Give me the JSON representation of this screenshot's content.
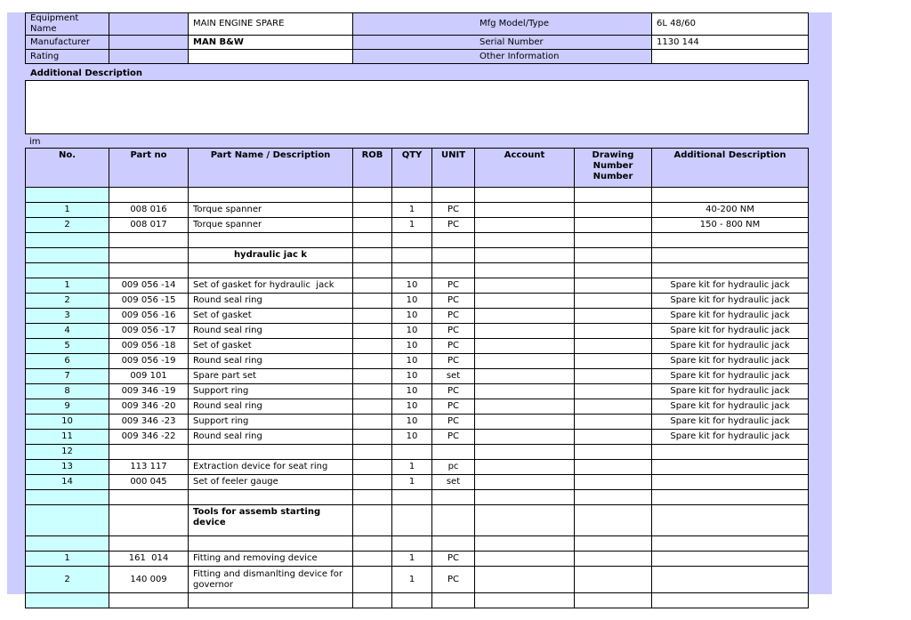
{
  "header": {
    "left": [
      {
        "label": "Equipment Name",
        "value": "MAIN ENGINE SPARE"
      },
      {
        "label": "Manufacturer",
        "value": "MAN B&W"
      },
      {
        "label": "Rating"
      }
    ],
    "right": [
      {
        "label": "Mfg Model/Type",
        "value": "6L 48/60"
      },
      {
        "label": "Serial Number",
        "value": "1130 144"
      },
      {
        "label": "Other Information"
      }
    ]
  },
  "additional_description_label": "Additional Description",
  "im_label": "im",
  "table": {
    "columns": [
      "No.",
      "Part no",
      "Part Name / Description",
      "ROB",
      "QTY",
      "UNIT",
      "Account",
      "Drawing Number Number",
      "Additional Description"
    ],
    "groups": [
      {
        "items": [
          {
            "no": "1",
            "part_no": "008 016",
            "name": "Torque spanner",
            "qty": "1",
            "unit": "PC",
            "additional": "40-200 NM"
          },
          {
            "no": "2",
            "part_no": "008 017",
            "name": "Torque spanner",
            "qty": "1",
            "unit": "PC",
            "additional": "150 - 800 NM"
          }
        ]
      },
      {
        "heading": "hydraulic jac k",
        "items": [
          {
            "no": "1",
            "part_no": "009 056 -14",
            "name": "Set of gasket for hydraulic  jack",
            "qty": "10",
            "unit": "PC",
            "additional": "Spare kit for hydraulic jack"
          },
          {
            "no": "2",
            "part_no": "009 056 -15",
            "name": "Round seal ring",
            "qty": "10",
            "unit": "PC",
            "additional": "Spare kit for hydraulic jack"
          },
          {
            "no": "3",
            "part_no": "009 056 -16",
            "name": "Set of gasket",
            "qty": "10",
            "unit": "PC",
            "additional": "Spare kit for hydraulic jack"
          },
          {
            "no": "4",
            "part_no": "009 056 -17",
            "name": "Round seal ring",
            "qty": "10",
            "unit": "PC",
            "additional": "Spare kit for hydraulic jack"
          },
          {
            "no": "5",
            "part_no": "009 056 -18",
            "name": "Set of gasket",
            "qty": "10",
            "unit": "PC",
            "additional": "Spare kit for hydraulic jack"
          },
          {
            "no": "6",
            "part_no": "009 056 -19",
            "name": "Round seal ring",
            "qty": "10",
            "unit": "PC",
            "additional": "Spare kit for hydraulic jack"
          },
          {
            "no": "7",
            "part_no": "009 101",
            "name": "Spare part set",
            "qty": "10",
            "unit": "set",
            "additional": "Spare kit for hydraulic jack"
          },
          {
            "no": "8",
            "part_no": "009 346 -19",
            "name": "Support ring",
            "qty": "10",
            "unit": "PC",
            "additional": "Spare kit for hydraulic jack"
          },
          {
            "no": "9",
            "part_no": "009 346 -20",
            "name": "Round seal ring",
            "qty": "10",
            "unit": "PC",
            "additional": "Spare kit for hydraulic jack"
          },
          {
            "no": "10",
            "part_no": "009 346 -23",
            "name": "Support ring",
            "qty": "10",
            "unit": "PC",
            "additional": "Spare kit for hydraulic jack"
          },
          {
            "no": "11",
            "part_no": "009 346 -22",
            "name": "Round seal ring",
            "qty": "10",
            "unit": "PC",
            "additional": "Spare kit for hydraulic jack"
          },
          {
            "no": "12"
          },
          {
            "no": "13",
            "part_no": "113 117",
            "name": "Extraction device for seat ring",
            "qty": "1",
            "unit": "pc"
          },
          {
            "no": "14",
            "part_no": "000 045",
            "name": "Set of feeler gauge",
            "qty": "1",
            "unit": "set"
          }
        ]
      },
      {
        "heading": "Tools for assemb starting device",
        "items": [
          {
            "no": "1",
            "part_no": "161  014",
            "name": "Fitting and removing device",
            "qty": "1",
            "unit": "PC"
          },
          {
            "no": "2",
            "part_no": "140 009",
            "name": "Fitting and dismanlting device for governor",
            "qty": "1",
            "unit": "PC"
          }
        ]
      }
    ]
  }
}
